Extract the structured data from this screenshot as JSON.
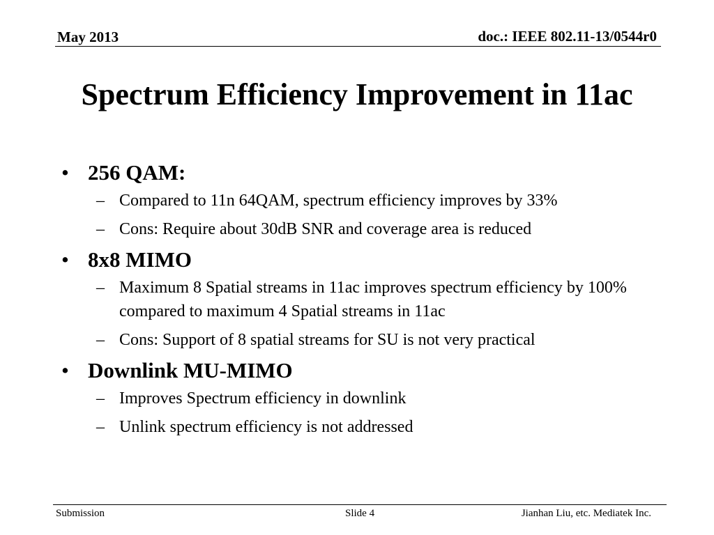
{
  "header": {
    "date": "May 2013",
    "doc_id": "doc.: IEEE 802.11-13/0544r0"
  },
  "title": "Spectrum Efficiency Improvement in 11ac",
  "bullet_marker": "•",
  "sub_marker": "–",
  "bullets": [
    {
      "text": "256 QAM:",
      "subs": [
        "Compared to 11n 64QAM, spectrum efficiency improves by 33%",
        "Cons: Require about 30dB SNR and coverage area is reduced"
      ]
    },
    {
      "text": "8x8 MIMO",
      "subs": [
        "Maximum 8 Spatial streams in 11ac improves spectrum efficiency by 100% compared to maximum 4 Spatial streams in 11ac",
        "Cons: Support of 8 spatial streams for SU is not very practical"
      ]
    },
    {
      "text": "Downlink MU-MIMO",
      "subs": [
        "Improves Spectrum efficiency in downlink",
        "Unlink spectrum efficiency is not addressed"
      ]
    }
  ],
  "footer": {
    "left": "Submission",
    "center": "Slide 4",
    "right": "Jianhan Liu, etc. Mediatek Inc."
  }
}
